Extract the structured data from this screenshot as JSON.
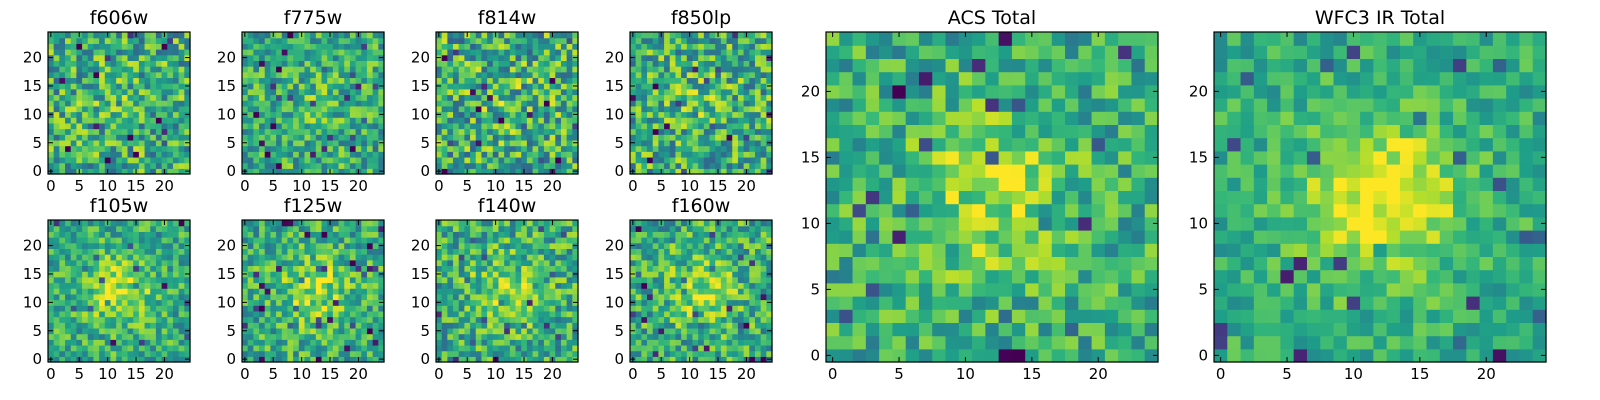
{
  "figure_title": "",
  "chart_data": [
    {
      "type": "heatmap",
      "title": "f606w",
      "size": 25,
      "xlim": [
        -0.5,
        24.5
      ],
      "ylim": [
        -0.5,
        24.5
      ],
      "xticks": [
        0,
        5,
        10,
        15,
        20
      ],
      "yticks": [
        0,
        5,
        10,
        15,
        20
      ],
      "colormap": "viridis",
      "noise": 0.3,
      "blob": 0.05,
      "seed": 11
    },
    {
      "type": "heatmap",
      "title": "f775w",
      "size": 25,
      "xlim": [
        -0.5,
        24.5
      ],
      "ylim": [
        -0.5,
        24.5
      ],
      "xticks": [
        0,
        5,
        10,
        15,
        20
      ],
      "yticks": [
        0,
        5,
        10,
        15,
        20
      ],
      "colormap": "viridis",
      "noise": 0.25,
      "blob": 0.08,
      "seed": 23
    },
    {
      "type": "heatmap",
      "title": "f814w",
      "size": 25,
      "xlim": [
        -0.5,
        24.5
      ],
      "ylim": [
        -0.5,
        24.5
      ],
      "xticks": [
        0,
        5,
        10,
        15,
        20
      ],
      "yticks": [
        0,
        5,
        10,
        15,
        20
      ],
      "colormap": "viridis",
      "noise": 0.32,
      "blob": 0.06,
      "seed": 37
    },
    {
      "type": "heatmap",
      "title": "f850lp",
      "size": 25,
      "xlim": [
        -0.5,
        24.5
      ],
      "ylim": [
        -0.5,
        24.5
      ],
      "xticks": [
        0,
        5,
        10,
        15,
        20
      ],
      "yticks": [
        0,
        5,
        10,
        15,
        20
      ],
      "colormap": "viridis",
      "noise": 0.3,
      "blob": 0.07,
      "seed": 41
    },
    {
      "type": "heatmap",
      "title": "f105w",
      "size": 25,
      "xlim": [
        -0.5,
        24.5
      ],
      "ylim": [
        -0.5,
        24.5
      ],
      "xticks": [
        0,
        5,
        10,
        15,
        20
      ],
      "yticks": [
        0,
        5,
        10,
        15,
        20
      ],
      "colormap": "viridis",
      "noise": 0.22,
      "blob": 0.28,
      "seed": 53
    },
    {
      "type": "heatmap",
      "title": "f125w",
      "size": 25,
      "xlim": [
        -0.5,
        24.5
      ],
      "ylim": [
        -0.5,
        24.5
      ],
      "xticks": [
        0,
        5,
        10,
        15,
        20
      ],
      "yticks": [
        0,
        5,
        10,
        15,
        20
      ],
      "colormap": "viridis",
      "noise": 0.24,
      "blob": 0.25,
      "seed": 67
    },
    {
      "type": "heatmap",
      "title": "f140w",
      "size": 25,
      "xlim": [
        -0.5,
        24.5
      ],
      "ylim": [
        -0.5,
        24.5
      ],
      "xticks": [
        0,
        5,
        10,
        15,
        20
      ],
      "yticks": [
        0,
        5,
        10,
        15,
        20
      ],
      "colormap": "viridis",
      "noise": 0.26,
      "blob": 0.22,
      "seed": 79
    },
    {
      "type": "heatmap",
      "title": "f160w",
      "size": 25,
      "xlim": [
        -0.5,
        24.5
      ],
      "ylim": [
        -0.5,
        24.5
      ],
      "xticks": [
        0,
        5,
        10,
        15,
        20
      ],
      "yticks": [
        0,
        5,
        10,
        15,
        20
      ],
      "colormap": "viridis",
      "noise": 0.26,
      "blob": 0.22,
      "seed": 83
    },
    {
      "type": "heatmap",
      "title": "ACS Total",
      "size": 25,
      "xlim": [
        -0.5,
        24.5
      ],
      "ylim": [
        -0.5,
        24.5
      ],
      "xticks": [
        0,
        5,
        10,
        15,
        20
      ],
      "yticks": [
        0,
        5,
        10,
        15,
        20
      ],
      "colormap": "viridis",
      "noise": 0.22,
      "blob": 0.25,
      "seed": 97
    },
    {
      "type": "heatmap",
      "title": "WFC3 IR Total",
      "size": 25,
      "xlim": [
        -0.5,
        24.5
      ],
      "ylim": [
        -0.5,
        24.5
      ],
      "xticks": [
        0,
        5,
        10,
        15,
        20
      ],
      "yticks": [
        0,
        5,
        10,
        15,
        20
      ],
      "colormap": "viridis",
      "noise": 0.16,
      "blob": 0.4,
      "seed": 101
    }
  ]
}
